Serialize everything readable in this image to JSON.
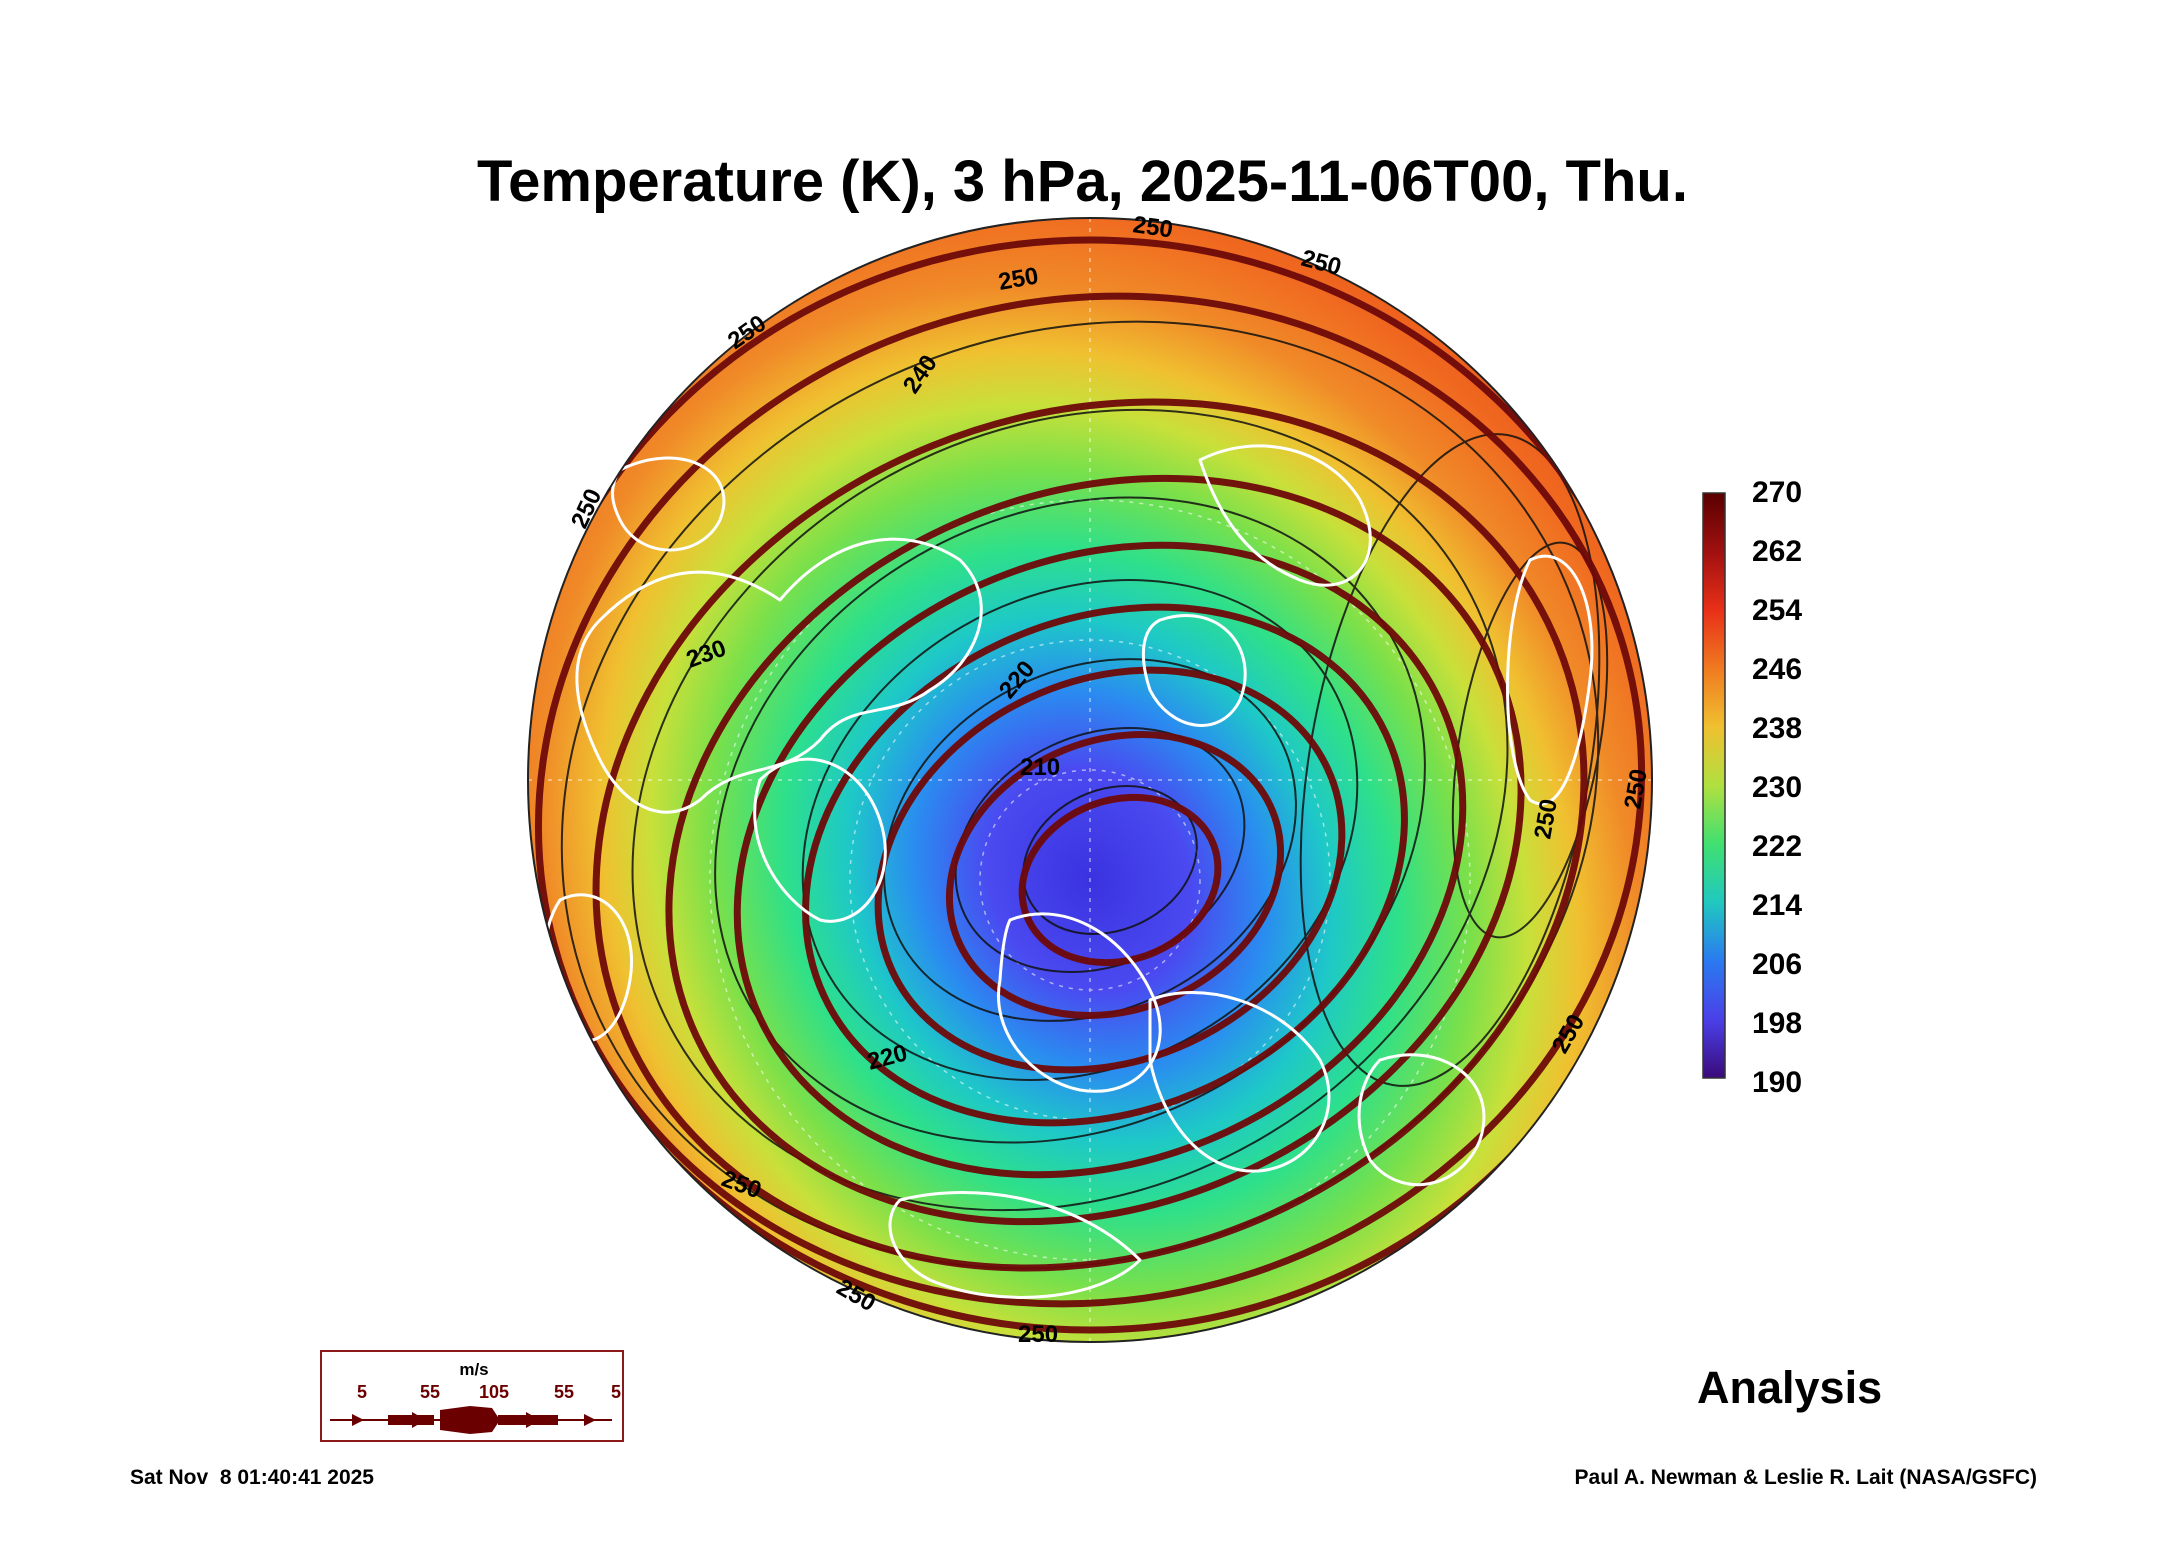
{
  "title": "Temperature (K), 3 hPa, 2025-11-06T00, Thu.",
  "colorbar": {
    "labels": [
      "270",
      "262",
      "254",
      "246",
      "238",
      "230",
      "222",
      "214",
      "206",
      "198",
      "190"
    ],
    "min": 190,
    "max": 270
  },
  "contour_labels": [
    "250",
    "250",
    "250",
    "240",
    "250",
    "230",
    "210",
    "220",
    "220",
    "250",
    "250",
    "250",
    "250",
    "250",
    "250",
    "250"
  ],
  "wind_legend": {
    "unit": "m/s",
    "speeds": [
      "5",
      "55",
      "105",
      "55",
      "5"
    ],
    "color": "#6a0000"
  },
  "analysis_label": "Analysis",
  "timestamp": "Sat Nov  8 01:40:41 2025",
  "credit": "Paul A. Newman & Leslie R. Lait (NASA/GSFC)"
}
